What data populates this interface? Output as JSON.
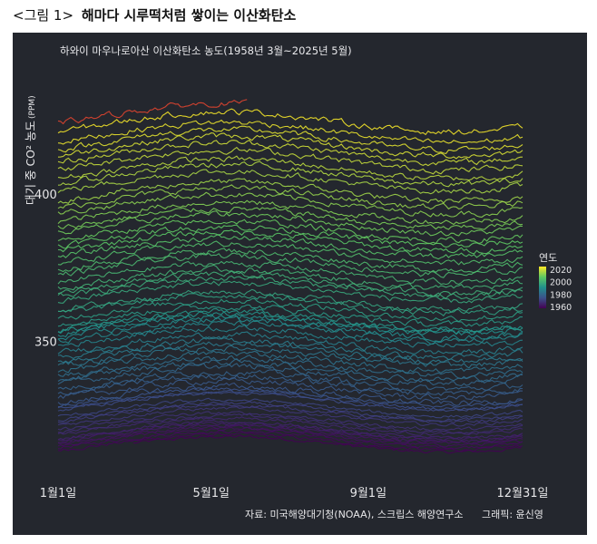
{
  "figure": {
    "number": "<그림 1>",
    "title": "해마다 시루떡처럼 쌓이는 이산화탄소"
  },
  "chart_data": {
    "type": "line",
    "title": "하와이 마우나로아산 이산화탄소 농도(1958년 3월~2025년 5월)",
    "ylabel": "대기 중 CO² 농도",
    "ylabel_unit": "(PPM)",
    "x_ticks": [
      "1월1일",
      "5월1일",
      "9월1일",
      "12월31일"
    ],
    "x_tick_days": [
      1,
      121,
      244,
      365
    ],
    "xlim": [
      1,
      365
    ],
    "y_ticks": [
      350,
      400
    ],
    "ylim": [
      308,
      436
    ],
    "series_per_year": "one line per year, 1958–2025",
    "year_range": [
      1958,
      2025
    ],
    "partial_years": {
      "1958": "from 3월",
      "2025": "to 5월"
    },
    "annual_mean_ppm": {
      "1958": 315.2,
      "1959": 315.97,
      "1960": 316.91,
      "1961": 317.64,
      "1962": 318.45,
      "1963": 318.99,
      "1964": 319.62,
      "1965": 320.04,
      "1966": 321.37,
      "1967": 322.18,
      "1968": 323.05,
      "1969": 324.62,
      "1970": 325.68,
      "1971": 326.32,
      "1972": 327.46,
      "1973": 329.68,
      "1974": 330.19,
      "1975": 331.12,
      "1976": 332.03,
      "1977": 333.84,
      "1978": 335.41,
      "1979": 336.84,
      "1980": 338.76,
      "1981": 340.12,
      "1982": 341.48,
      "1983": 343.15,
      "1984": 344.87,
      "1985": 346.35,
      "1986": 347.61,
      "1987": 349.31,
      "1988": 351.69,
      "1989": 353.2,
      "1990": 354.45,
      "1991": 355.7,
      "1992": 356.54,
      "1993": 357.21,
      "1994": 358.96,
      "1995": 360.97,
      "1996": 362.74,
      "1997": 363.88,
      "1998": 366.84,
      "1999": 368.54,
      "2000": 369.71,
      "2001": 371.32,
      "2002": 373.45,
      "2003": 375.98,
      "2004": 377.7,
      "2005": 379.98,
      "2006": 382.09,
      "2007": 384.02,
      "2008": 385.83,
      "2009": 387.64,
      "2010": 390.1,
      "2011": 391.85,
      "2012": 394.06,
      "2013": 396.74,
      "2014": 398.81,
      "2015": 401.01,
      "2016": 404.41,
      "2017": 406.76,
      "2018": 408.72,
      "2019": 411.66,
      "2020": 414.24,
      "2021": 416.45,
      "2022": 418.56,
      "2023": 421.08,
      "2024": 424.61,
      "2025": 427.5
    },
    "seasonal_cycle_note": "peak around 5월, minimum around 9월–10월",
    "colorscale": "viridis (purple→yellow), most recent values red",
    "legend": {
      "title": "연도",
      "ticks": [
        "2020",
        "2000",
        "1980",
        "1960"
      ],
      "placement": "right"
    },
    "grid": false
  },
  "source": "자료: 미국해양대기청(NOAA), 스크립스 해양연구소",
  "credit": "그래픽: 윤신영",
  "colors": {
    "panel_bg": "#24272e",
    "text": "#e6e6e8",
    "recent_peak": "#e2452f"
  }
}
